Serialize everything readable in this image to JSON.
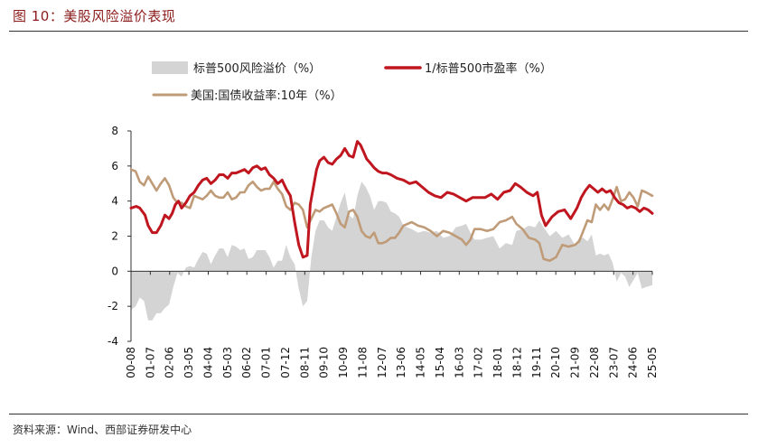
{
  "figure": {
    "title": "图 10：美股风险溢价表现",
    "source": "资料来源：Wind、西部证券研发中心"
  },
  "chart_data": {
    "type": "line",
    "title": "美股风险溢价表现",
    "legend": [
      {
        "key": "premium",
        "label": "标普500风险溢价（%）",
        "kind": "area",
        "color": "#d4d4d4"
      },
      {
        "key": "ey",
        "label": "1/标普500市盈率（%）",
        "kind": "line",
        "color": "#c0161f"
      },
      {
        "key": "ty",
        "label": "美国:国债收益率:10年（%）",
        "kind": "line",
        "color": "#bf9b78"
      }
    ],
    "x_range": [
      2000.58,
      2025.5
    ],
    "ylim": [
      -4,
      8
    ],
    "yticks": [
      -4,
      -2,
      0,
      2,
      4,
      6,
      8
    ],
    "xtick_labels": [
      "00-08",
      "01-07",
      "02-06",
      "03-05",
      "04-04",
      "05-03",
      "06-02",
      "07-01",
      "07-12",
      "08-11",
      "09-10",
      "10-09",
      "11-08",
      "12-07",
      "13-06",
      "14-05",
      "15-04",
      "16-03",
      "17-02",
      "18-01",
      "18-12",
      "19-11",
      "20-10",
      "21-09",
      "22-08",
      "23-07",
      "24-06",
      "25-05"
    ],
    "series": [
      {
        "name": "1/标普500市盈率（%）",
        "x": [
          2000.58,
          2000.83,
          2001.0,
          2001.25,
          2001.4,
          2001.6,
          2001.8,
          2002.0,
          2002.2,
          2002.4,
          2002.55,
          2002.7,
          2002.85,
          2003.0,
          2003.2,
          2003.4,
          2003.6,
          2003.8,
          2004.0,
          2004.2,
          2004.4,
          2004.6,
          2004.8,
          2005.0,
          2005.2,
          2005.4,
          2005.6,
          2005.8,
          2006.0,
          2006.2,
          2006.4,
          2006.6,
          2006.8,
          2007.0,
          2007.2,
          2007.4,
          2007.6,
          2007.8,
          2008.0,
          2008.2,
          2008.4,
          2008.6,
          2008.8,
          2009.0,
          2009.15,
          2009.3,
          2009.45,
          2009.6,
          2009.8,
          2010.0,
          2010.2,
          2010.4,
          2010.6,
          2010.8,
          2011.0,
          2011.2,
          2011.4,
          2011.55,
          2011.7,
          2011.85,
          2012.0,
          2012.2,
          2012.4,
          2012.6,
          2012.8,
          2013.0,
          2013.3,
          2013.6,
          2013.9,
          2014.2,
          2014.5,
          2014.8,
          2015.1,
          2015.4,
          2015.7,
          2016.0,
          2016.3,
          2016.6,
          2016.9,
          2017.2,
          2017.5,
          2017.8,
          2018.1,
          2018.4,
          2018.7,
          2018.95,
          2019.2,
          2019.5,
          2019.8,
          2020.0,
          2020.2,
          2020.4,
          2020.7,
          2021.0,
          2021.3,
          2021.6,
          2021.9,
          2022.1,
          2022.3,
          2022.5,
          2022.7,
          2022.9,
          2023.1,
          2023.3,
          2023.5,
          2023.7,
          2023.9,
          2024.1,
          2024.3,
          2024.5,
          2024.7,
          2024.9,
          2025.1,
          2025.3,
          2025.5
        ],
        "values": [
          3.6,
          3.7,
          3.6,
          3.2,
          2.6,
          2.2,
          2.2,
          2.6,
          3.2,
          3.0,
          3.3,
          3.8,
          4.0,
          3.6,
          3.9,
          4.3,
          4.5,
          4.9,
          5.2,
          5.3,
          5.0,
          5.2,
          5.5,
          5.5,
          5.3,
          5.6,
          5.6,
          5.7,
          5.8,
          5.6,
          5.9,
          6.0,
          5.8,
          5.9,
          5.5,
          5.3,
          5.0,
          5.2,
          4.7,
          4.3,
          2.8,
          1.5,
          0.8,
          0.9,
          3.8,
          4.8,
          5.8,
          6.3,
          6.5,
          6.2,
          6.1,
          6.4,
          6.6,
          7.0,
          6.6,
          6.5,
          7.4,
          7.2,
          6.8,
          6.4,
          6.2,
          5.9,
          5.7,
          5.6,
          5.6,
          5.5,
          5.3,
          5.2,
          5.0,
          5.1,
          4.8,
          4.5,
          4.3,
          4.2,
          4.5,
          4.4,
          4.2,
          4.0,
          4.2,
          4.2,
          4.2,
          4.4,
          4.1,
          4.5,
          4.6,
          5.0,
          4.8,
          4.5,
          4.3,
          4.5,
          3.2,
          2.6,
          3.1,
          3.4,
          3.5,
          3.0,
          3.6,
          4.2,
          4.6,
          4.9,
          4.7,
          4.5,
          4.7,
          4.5,
          4.6,
          4.2,
          3.9,
          3.8,
          3.6,
          3.7,
          3.6,
          3.4,
          3.6,
          3.5,
          3.3
        ]
      },
      {
        "name": "美国:国债收益率:10年（%）",
        "x": [
          2000.58,
          2000.8,
          2001.0,
          2001.2,
          2001.4,
          2001.6,
          2001.8,
          2002.0,
          2002.2,
          2002.4,
          2002.6,
          2002.8,
          2003.0,
          2003.2,
          2003.4,
          2003.6,
          2003.8,
          2004.0,
          2004.2,
          2004.4,
          2004.6,
          2004.8,
          2005.0,
          2005.2,
          2005.4,
          2005.6,
          2005.8,
          2006.0,
          2006.2,
          2006.4,
          2006.6,
          2006.8,
          2007.0,
          2007.2,
          2007.4,
          2007.6,
          2007.8,
          2008.0,
          2008.2,
          2008.4,
          2008.6,
          2008.8,
          2009.0,
          2009.2,
          2009.4,
          2009.6,
          2009.8,
          2010.0,
          2010.2,
          2010.4,
          2010.6,
          2010.8,
          2011.0,
          2011.2,
          2011.4,
          2011.6,
          2011.8,
          2012.0,
          2012.2,
          2012.4,
          2012.6,
          2012.8,
          2013.0,
          2013.2,
          2013.4,
          2013.6,
          2013.8,
          2014.0,
          2014.3,
          2014.6,
          2014.9,
          2015.2,
          2015.5,
          2015.8,
          2016.1,
          2016.4,
          2016.6,
          2016.8,
          2017.0,
          2017.3,
          2017.6,
          2017.9,
          2018.2,
          2018.5,
          2018.8,
          2019.0,
          2019.3,
          2019.6,
          2019.9,
          2020.1,
          2020.3,
          2020.6,
          2020.9,
          2021.2,
          2021.5,
          2021.8,
          2022.0,
          2022.2,
          2022.4,
          2022.6,
          2022.8,
          2023.0,
          2023.2,
          2023.4,
          2023.6,
          2023.8,
          2024.0,
          2024.2,
          2024.4,
          2024.6,
          2024.8,
          2025.0,
          2025.2,
          2025.5
        ],
        "values": [
          5.8,
          5.7,
          5.1,
          4.9,
          5.4,
          5.0,
          4.6,
          5.0,
          5.3,
          4.9,
          4.2,
          3.9,
          3.9,
          3.7,
          3.6,
          4.3,
          4.2,
          4.1,
          4.3,
          4.6,
          4.3,
          4.2,
          4.2,
          4.5,
          4.1,
          4.2,
          4.5,
          4.5,
          4.9,
          5.1,
          4.8,
          4.6,
          4.7,
          4.7,
          5.1,
          4.7,
          4.4,
          3.7,
          3.5,
          3.9,
          3.8,
          3.5,
          2.5,
          3.0,
          3.5,
          3.4,
          3.6,
          3.7,
          3.8,
          3.3,
          2.7,
          2.5,
          3.4,
          3.5,
          3.1,
          2.3,
          2.0,
          1.9,
          2.2,
          1.6,
          1.6,
          1.7,
          1.9,
          1.9,
          2.2,
          2.6,
          2.7,
          2.8,
          2.6,
          2.5,
          2.3,
          2.0,
          2.3,
          2.2,
          2.0,
          1.8,
          1.5,
          1.8,
          2.4,
          2.4,
          2.3,
          2.4,
          2.8,
          2.9,
          3.1,
          2.7,
          2.4,
          1.9,
          1.8,
          1.6,
          0.7,
          0.6,
          0.8,
          1.5,
          1.4,
          1.5,
          1.7,
          2.3,
          2.9,
          2.8,
          3.8,
          3.5,
          3.8,
          3.5,
          4.1,
          4.8,
          4.0,
          4.1,
          4.5,
          4.2,
          3.7,
          4.6,
          4.5,
          4.3
        ]
      },
      {
        "name": "标普500风险溢价（%）",
        "x": [
          2000.58,
          2000.8,
          2001.0,
          2001.2,
          2001.4,
          2001.6,
          2001.8,
          2002.0,
          2002.2,
          2002.4,
          2002.6,
          2002.8,
          2003.0,
          2003.2,
          2003.4,
          2003.6,
          2003.8,
          2004.0,
          2004.2,
          2004.4,
          2004.6,
          2004.8,
          2005.0,
          2005.2,
          2005.4,
          2005.6,
          2005.8,
          2006.0,
          2006.2,
          2006.4,
          2006.6,
          2006.8,
          2007.0,
          2007.2,
          2007.4,
          2007.6,
          2007.8,
          2008.0,
          2008.2,
          2008.4,
          2008.6,
          2008.8,
          2009.0,
          2009.2,
          2009.4,
          2009.6,
          2009.8,
          2010.0,
          2010.2,
          2010.4,
          2010.6,
          2010.8,
          2011.0,
          2011.2,
          2011.4,
          2011.6,
          2011.8,
          2012.0,
          2012.2,
          2012.4,
          2012.6,
          2012.8,
          2013.0,
          2013.2,
          2013.4,
          2013.6,
          2013.8,
          2014.0,
          2014.3,
          2014.6,
          2014.9,
          2015.2,
          2015.5,
          2015.8,
          2016.1,
          2016.4,
          2016.6,
          2016.8,
          2017.0,
          2017.3,
          2017.6,
          2017.9,
          2018.2,
          2018.5,
          2018.8,
          2019.0,
          2019.3,
          2019.6,
          2019.9,
          2020.1,
          2020.3,
          2020.6,
          2020.9,
          2021.2,
          2021.5,
          2021.8,
          2022.0,
          2022.2,
          2022.4,
          2022.6,
          2022.8,
          2023.0,
          2023.2,
          2023.4,
          2023.6,
          2023.8,
          2024.0,
          2024.2,
          2024.4,
          2024.6,
          2024.8,
          2025.0,
          2025.2,
          2025.5
        ],
        "values": [
          -2.2,
          -2.0,
          -1.5,
          -1.7,
          -2.8,
          -2.8,
          -2.4,
          -2.4,
          -2.1,
          -1.9,
          -0.9,
          -0.1,
          -0.3,
          0.2,
          0.3,
          0.2,
          0.7,
          1.1,
          1.0,
          0.4,
          0.9,
          1.3,
          1.3,
          0.8,
          1.5,
          1.4,
          1.2,
          1.3,
          0.7,
          0.8,
          1.2,
          1.2,
          1.2,
          0.8,
          0.2,
          0.6,
          0.6,
          1.5,
          0.8,
          0.4,
          -1.0,
          -2.0,
          -1.7,
          0.8,
          2.3,
          2.9,
          2.9,
          2.5,
          2.3,
          3.1,
          3.9,
          4.5,
          3.2,
          3.0,
          4.3,
          5.1,
          4.8,
          4.3,
          3.5,
          4.0,
          4.0,
          3.9,
          3.4,
          3.3,
          3.1,
          2.6,
          2.5,
          2.4,
          2.2,
          2.3,
          2.2,
          2.3,
          1.9,
          2.0,
          2.5,
          2.6,
          2.7,
          2.2,
          1.8,
          1.8,
          1.9,
          2.0,
          1.3,
          1.6,
          1.5,
          2.3,
          2.4,
          2.6,
          2.5,
          2.9,
          2.5,
          2.0,
          2.3,
          1.9,
          2.1,
          1.5,
          1.9,
          1.9,
          1.7,
          2.1,
          0.9,
          1.0,
          0.9,
          1.0,
          0.5,
          -0.6,
          -0.1,
          -0.3,
          -0.9,
          -0.5,
          -0.1,
          -1.0,
          -0.9,
          -0.8
        ]
      }
    ]
  }
}
